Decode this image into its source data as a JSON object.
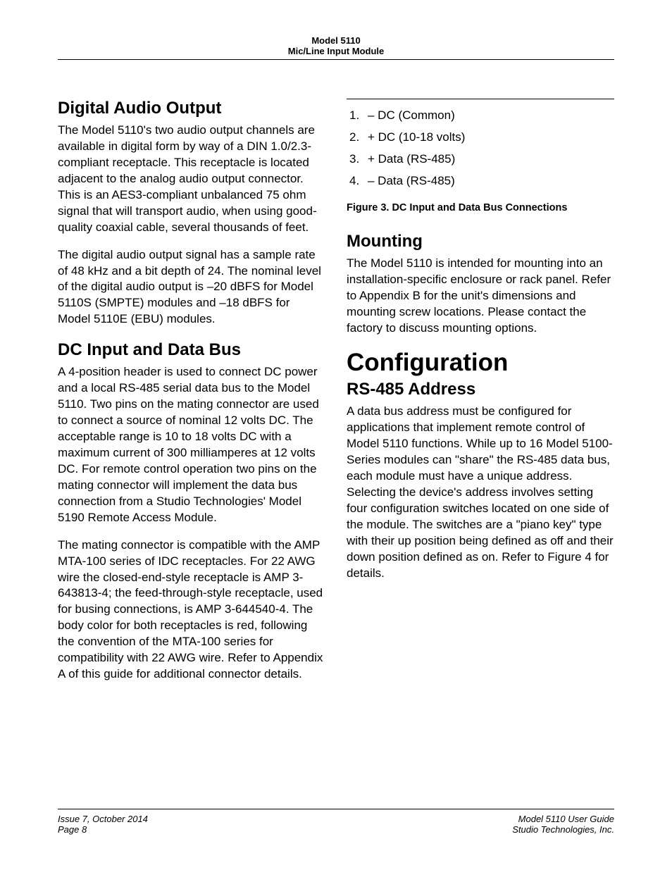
{
  "header": {
    "line1": "Model 5110",
    "line2": "Mic/Line Input Module"
  },
  "leftColumn": {
    "section1": {
      "heading": "Digital Audio Output",
      "para1": "The Model 5110's two audio output channels are available in digital form by way of a DIN 1.0/2.3-compliant receptacle. This receptacle is located adjacent to the analog audio output connector. This is an AES3-compliant unbalanced 75 ohm signal that will transport audio, when using good-quality coaxial cable, several thousands of feet.",
      "para2": "The digital audio output signal has a sample rate of 48 kHz and a bit depth of 24. The nominal level of the digital audio output is –20 dBFS for Model 5110S (SMPTE) modules and –18 dBFS for Model 5110E (EBU) modules."
    },
    "section2": {
      "heading": "DC Input and Data Bus",
      "para1": "A 4-position header is used to connect DC power and a local RS-485 serial data bus to the Model 5110. Two pins on the mating connector are used to connect a source of nominal 12 volts DC. The acceptable range is 10 to 18 volts DC with a maximum current of 300 milliamperes at 12 volts DC. For remote control operation two pins on the mating connector will implement the data bus connection from a Studio Technologies' Model 5190 Remote Access Module.",
      "para2": "The mating connector is compatible with the AMP MTA-100 series of IDC receptacles. For 22 AWG wire the closed-end-style receptacle is AMP 3-643813-4; the feed-through-style receptacle, used for busing connections, is AMP 3-644540-4. The body color for both receptacles is red, following the convention of the MTA-100 series for compatibility with 22 AWG wire. Refer to Appendix A of this guide for additional connector details."
    }
  },
  "rightColumn": {
    "pinList": [
      {
        "num": "1.",
        "label": "– DC (Common)"
      },
      {
        "num": "2.",
        "label": "+ DC (10-18 volts)"
      },
      {
        "num": "3.",
        "label": "+ Data (RS-485)"
      },
      {
        "num": "4.",
        "label": "– Data (RS-485)"
      }
    ],
    "figureCaption": "Figure 3. DC Input and Data Bus Connections",
    "section1": {
      "heading": "Mounting",
      "para1": "The Model 5110 is intended for mounting into an installation-specific enclosure or rack panel. Refer to Appendix B for the unit's dimensions and mounting screw locations. Please contact the factory to discuss mounting options."
    },
    "mainHeading": "Configuration",
    "section2": {
      "heading": "RS-485 Address",
      "para1": "A data bus address must be configured for applications that implement remote control of Model 5110 functions. While up to 16 Model 5100-Series modules can \"share\" the RS-485 data bus, each module must have a unique address. Selecting the device's address involves setting four configuration switches located on one side of the module. The switches are a \"piano key\" type with their up position being defined as off and their down position defined as on. Refer to Figure 4 for details."
    }
  },
  "footer": {
    "leftLine1": "Issue 7, October 2014",
    "leftLine2": "Page 8",
    "rightLine1": "Model 5110 User Guide",
    "rightLine2": "Studio Technologies, Inc."
  }
}
